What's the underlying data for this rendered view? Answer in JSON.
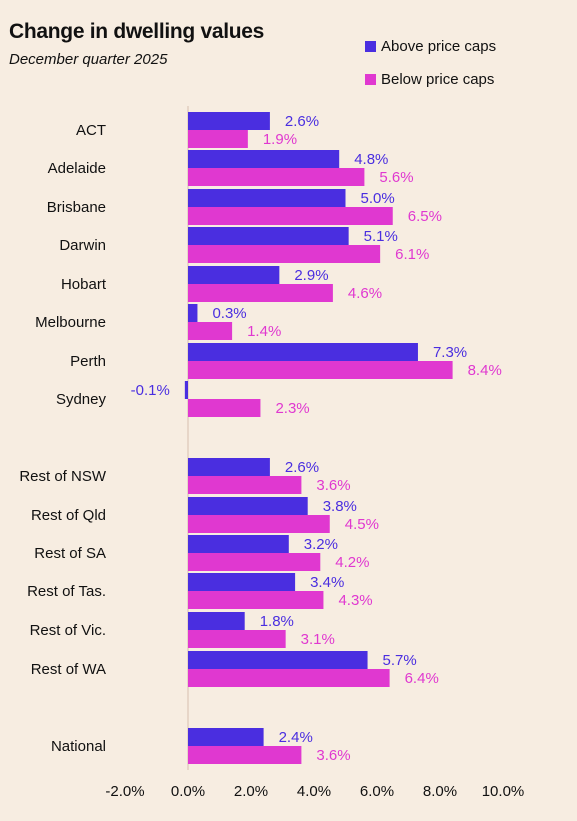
{
  "header": {
    "title": "Change in dwelling values",
    "subtitle": "December quarter 2025"
  },
  "colors": {
    "above": "#4a2ee0",
    "below": "#e038d0",
    "background": "#f7ede1",
    "axis": "#e2cfc0"
  },
  "chart_data": {
    "type": "bar",
    "orientation": "horizontal",
    "title": "Change in dwelling values",
    "subtitle": "December quarter 2025",
    "xlabel": "",
    "ylabel": "",
    "xlim": [
      -2,
      10
    ],
    "x_ticks": [
      "-2.0%",
      "0.0%",
      "2.0%",
      "4.0%",
      "6.0%",
      "8.0%",
      "10.0%"
    ],
    "categories": [
      "ACT",
      "Adelaide",
      "Brisbane",
      "Darwin",
      "Hobart",
      "Melbourne",
      "Perth",
      "Sydney",
      "Rest of NSW",
      "Rest of Qld",
      "Rest of SA",
      "Rest of Tas.",
      "Rest of Vic.",
      "Rest of WA",
      "National"
    ],
    "series": [
      {
        "name": "Above price caps",
        "values": [
          2.6,
          4.8,
          5.0,
          5.1,
          2.9,
          0.3,
          7.3,
          -0.1,
          2.6,
          3.8,
          3.2,
          3.4,
          1.8,
          5.7,
          2.4
        ],
        "labels": [
          "2.6%",
          "4.8%",
          "5.0%",
          "5.1%",
          "2.9%",
          "0.3%",
          "7.3%",
          "-0.1%",
          "2.6%",
          "3.8%",
          "3.2%",
          "3.4%",
          "1.8%",
          "5.7%",
          "2.4%"
        ]
      },
      {
        "name": "Below price caps",
        "values": [
          1.9,
          5.6,
          6.5,
          6.1,
          4.6,
          1.4,
          8.4,
          2.3,
          3.6,
          4.5,
          4.2,
          4.3,
          3.1,
          6.4,
          3.6
        ],
        "labels": [
          "1.9%",
          "5.6%",
          "6.5%",
          "6.1%",
          "4.6%",
          "1.4%",
          "8.4%",
          "2.3%",
          "3.6%",
          "4.5%",
          "4.2%",
          "4.3%",
          "3.1%",
          "6.4%",
          "3.6%"
        ]
      }
    ],
    "grid": false,
    "legend": "top-right"
  }
}
